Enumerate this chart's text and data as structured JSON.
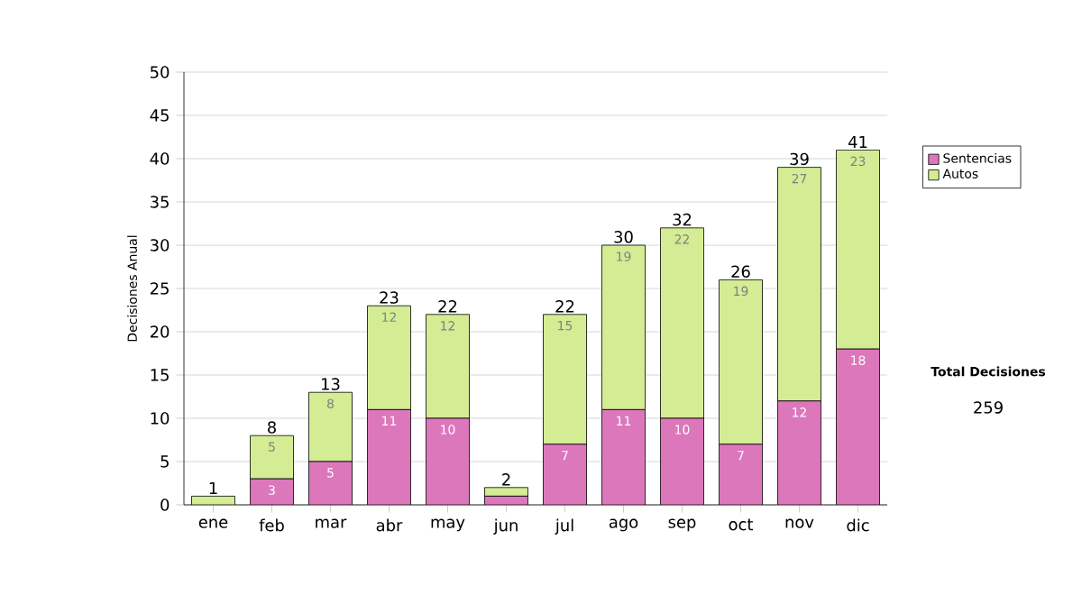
{
  "chart_data": {
    "type": "bar",
    "stacked": true,
    "ylabel": "Decisiones Anual",
    "categories": [
      "ene",
      "feb",
      "mar",
      "abr",
      "may",
      "jun",
      "jul",
      "ago",
      "sep",
      "oct",
      "nov",
      "dic"
    ],
    "series": [
      {
        "name": "Sentencias",
        "color": "#dd77bb",
        "values": [
          0,
          3,
          5,
          11,
          10,
          1,
          7,
          11,
          10,
          7,
          12,
          18
        ],
        "value_labels": [
          null,
          "3",
          "5",
          "11",
          "10",
          null,
          "7",
          "11",
          "10",
          "7",
          "12",
          "18"
        ]
      },
      {
        "name": "Autos",
        "color": "#d4ec94",
        "values": [
          1,
          5,
          8,
          12,
          12,
          1,
          15,
          19,
          22,
          19,
          27,
          23
        ],
        "value_labels": [
          null,
          "5",
          "8",
          "12",
          "12",
          null,
          "15",
          "19",
          "22",
          "19",
          "27",
          "23"
        ]
      }
    ],
    "totals": [
      "1",
      "8",
      "13",
      "23",
      "22",
      "2",
      "22",
      "30",
      "32",
      "26",
      "39",
      "41"
    ],
    "ylim": [
      0,
      50
    ],
    "yticks": [
      0,
      5,
      10,
      15,
      20,
      25,
      30,
      35,
      40,
      45,
      50
    ],
    "grid": "y",
    "legend": "right",
    "annotations": [
      "Total Decisiones",
      "259"
    ]
  }
}
